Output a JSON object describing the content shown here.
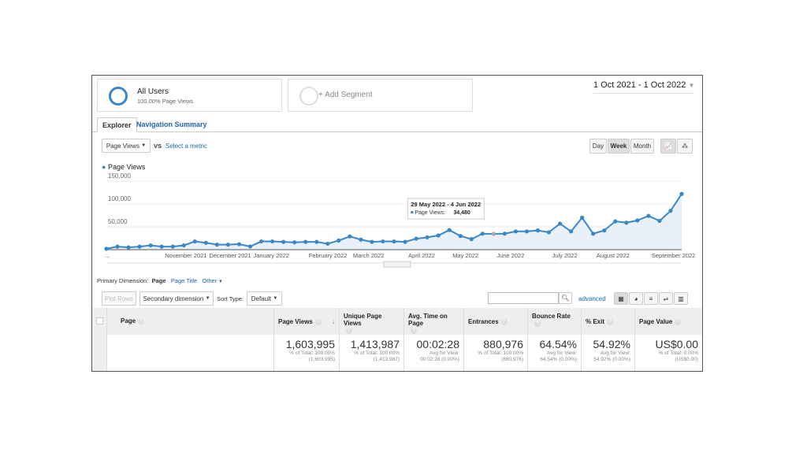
{
  "segments": {
    "all_users": {
      "title": "All Users",
      "subtitle": "100.00% Page Views"
    },
    "add": "+ Add Segment"
  },
  "date_range": "1 Oct 2021 - 1 Oct 2022",
  "tabs": [
    "Explorer",
    "Navigation Summary"
  ],
  "metric": {
    "selected": "Page Views",
    "vs": "VS",
    "select_metric": "Select a metric"
  },
  "granularity": [
    "Day",
    "Week",
    "Month"
  ],
  "chart_data": {
    "type": "line",
    "legend": "Page Views",
    "ylim": [
      0,
      150000
    ],
    "yticks": [
      "150,000",
      "100,000",
      "50,000"
    ],
    "ytick_values": [
      150000,
      100000,
      50000
    ],
    "xticks": [
      "...",
      "November 2021",
      "December 2021",
      "January 2022",
      "February 2022",
      "March 2022",
      "April 2022",
      "May 2022",
      "June 2022",
      "July 2022",
      "August 2022",
      "September 2022"
    ],
    "xtick_index": [
      0,
      5,
      9,
      13,
      18,
      22,
      27,
      31,
      35,
      40,
      44,
      49
    ],
    "values": [
      2000,
      6700,
      5000,
      6700,
      9400,
      6700,
      6700,
      9400,
      18000,
      15000,
      11000,
      11000,
      12000,
      7000,
      18000,
      18000,
      17000,
      16000,
      17000,
      17000,
      13000,
      20000,
      29000,
      22000,
      17000,
      18000,
      18000,
      17000,
      24000,
      27000,
      31000,
      43000,
      30000,
      23000,
      35000,
      34480,
      35000,
      40000,
      40000,
      42000,
      38000,
      57000,
      40000,
      70000,
      35000,
      42000,
      62000,
      59000,
      64000,
      74000,
      63000,
      85000,
      122000
    ],
    "tooltip": {
      "title": "29 May 2022 - 4 Jun 2022",
      "label": "Page Views:",
      "value": "34,480",
      "index": 35
    },
    "color": "#3a87c8"
  },
  "dimension": {
    "label": "Primary Dimension:",
    "options": [
      "Page",
      "Page Title",
      "Other"
    ]
  },
  "toolbar": {
    "plot_rows": "Plot Rows",
    "secondary": "Secondary dimension",
    "sort_label": "Sort Type:",
    "sort_value": "Default",
    "advanced": "advanced"
  },
  "table": {
    "headers": [
      "Page",
      "Page Views",
      "Unique Page Views",
      "Avg. Time on Page",
      "Entrances",
      "Bounce Rate",
      "% Exit",
      "Page Value"
    ],
    "totals": [
      {
        "value": "1,603,995",
        "sub1": "% of Total: 100.00%",
        "sub2": "(1,603,995)"
      },
      {
        "value": "1,413,987",
        "sub1": "% of Total: 100.00%",
        "sub2": "(1,413,987)"
      },
      {
        "value": "00:02:28",
        "sub1": "Avg for View:",
        "sub2": "00:02:28 (0.00%)"
      },
      {
        "value": "880,976",
        "sub1": "% of Total: 100.00%",
        "sub2": "(880,976)"
      },
      {
        "value": "64.54%",
        "sub1": "Avg for View:",
        "sub2": "64.54% (0.00%)"
      },
      {
        "value": "54.92%",
        "sub1": "Avg for View:",
        "sub2": "54.92% (0.00%)"
      },
      {
        "value": "US$0.00",
        "sub1": "% of Total: 0.00%",
        "sub2": "(US$0.00)"
      }
    ]
  }
}
